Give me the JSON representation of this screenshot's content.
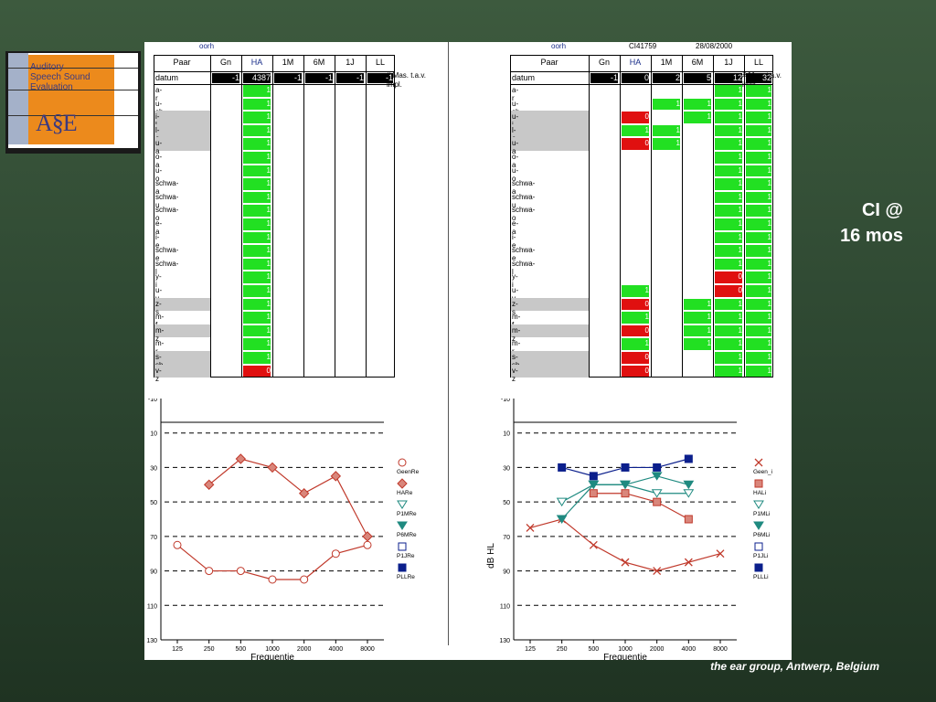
{
  "logo": {
    "line1": "Auditory",
    "line2": "Speech Sound",
    "line3": "Evaluation",
    "abbr": "A§E"
  },
  "slide_label": {
    "line1": "CI @",
    "line2": "16 mos"
  },
  "footer": "the ear group, Antwerp, Belgium",
  "left": {
    "top_label": "oorh",
    "headers": [
      "Paar",
      "Gn",
      "HA",
      "1M",
      "6M",
      "1J",
      "LL"
    ],
    "note": "# Mas. t.a.v. impl.",
    "datum_label": "datum",
    "datum_values": [
      "-1",
      "4387",
      "-1",
      "-1",
      "-1",
      "-1"
    ],
    "rows": [
      "a-r",
      "u-sh",
      "i-l",
      "l-a",
      "u-a",
      "o-a",
      "u-o",
      "schwa-a",
      "schwa-u",
      "schwa-o",
      "e-a",
      "i-e",
      "schwa-e",
      "schwa-l",
      "y-i",
      "u-y",
      "z-s",
      "m-f",
      "m-z",
      "m-r",
      "s-sh",
      "v-z"
    ],
    "ha_values": [
      "1",
      "1",
      "1",
      "1",
      "1",
      "1",
      "1",
      "1",
      "1",
      "1",
      "1",
      "1",
      "1",
      "1",
      "1",
      "1",
      "1",
      "1",
      "1",
      "1",
      "1",
      "0"
    ],
    "xtitle": "Frequentie"
  },
  "right": {
    "top_label": "oorh",
    "id": "CI41759",
    "date": "28/08/2000",
    "headers": [
      "Paar",
      "Gn",
      "HA",
      "1M",
      "6M",
      "1J",
      "LL"
    ],
    "note": "# Mas. t.a.v. impl.",
    "datum_label": "datum",
    "datum_values": [
      "-1",
      "0",
      "2",
      "5",
      "12",
      "32"
    ],
    "rows": [
      "a-r",
      "u-sh",
      "u-i",
      "l-a",
      "u-a",
      "o-a",
      "u-o",
      "schwa-a",
      "schwa-u",
      "schwa-o",
      "e-a",
      "i-e",
      "schwa-e",
      "schwa-l",
      "y-i",
      "u-y",
      "z-s",
      "m-f",
      "m-z",
      "m-r",
      "s-sh",
      "v-z"
    ],
    "ylabel": "dB HL",
    "xtitle": "Frequentie"
  },
  "colors": {
    "green": "#22e022",
    "red": "#e01010",
    "orange": "#ec8a1c",
    "chart_red": "#c0392b",
    "teal": "#1f8a80",
    "navy": "#0b1f8c"
  },
  "chart_data": [
    {
      "type": "line",
      "title": "",
      "xlabel": "Frequentie",
      "ylabel": "",
      "categories": [
        "125",
        "250",
        "500",
        "1000",
        "2000",
        "4000",
        "8000"
      ],
      "y_ticks": [
        "-10",
        "10",
        "30",
        "50",
        "70",
        "90",
        "110",
        "130"
      ],
      "ylim": [
        -10,
        130
      ],
      "series": [
        {
          "name": "GeenRe",
          "values": [
            75,
            90,
            90,
            95,
            95,
            80,
            75
          ]
        },
        {
          "name": "HARe",
          "values": [
            null,
            40,
            25,
            30,
            45,
            35,
            70
          ]
        }
      ],
      "legend": [
        "GeenRe",
        "HARe",
        "P1MRe",
        "P6MRe",
        "P1JRe",
        "PLLRe"
      ]
    },
    {
      "type": "line",
      "title": "",
      "xlabel": "Frequentie",
      "ylabel": "dB HL",
      "categories": [
        "125",
        "250",
        "500",
        "1000",
        "2000",
        "4000",
        "8000"
      ],
      "y_ticks": [
        "-10",
        "10",
        "30",
        "50",
        "70",
        "90",
        "110",
        "130"
      ],
      "ylim": [
        -10,
        130
      ],
      "series": [
        {
          "name": "Geen_i",
          "values": [
            65,
            60,
            75,
            85,
            90,
            85,
            80
          ]
        },
        {
          "name": "HALi",
          "values": [
            null,
            null,
            45,
            45,
            50,
            60,
            null
          ]
        },
        {
          "name": "P1MLi",
          "values": [
            null,
            50,
            40,
            40,
            45,
            45,
            null
          ]
        },
        {
          "name": "P6MLi",
          "values": [
            null,
            60,
            40,
            40,
            35,
            40,
            null
          ]
        },
        {
          "name": "PLLLi",
          "values": [
            null,
            30,
            35,
            30,
            30,
            25,
            null
          ]
        }
      ],
      "legend": [
        "Geen_i",
        "HALi",
        "P1MLi",
        "P6MLi",
        "P1JLi",
        "PLLLi"
      ]
    }
  ]
}
